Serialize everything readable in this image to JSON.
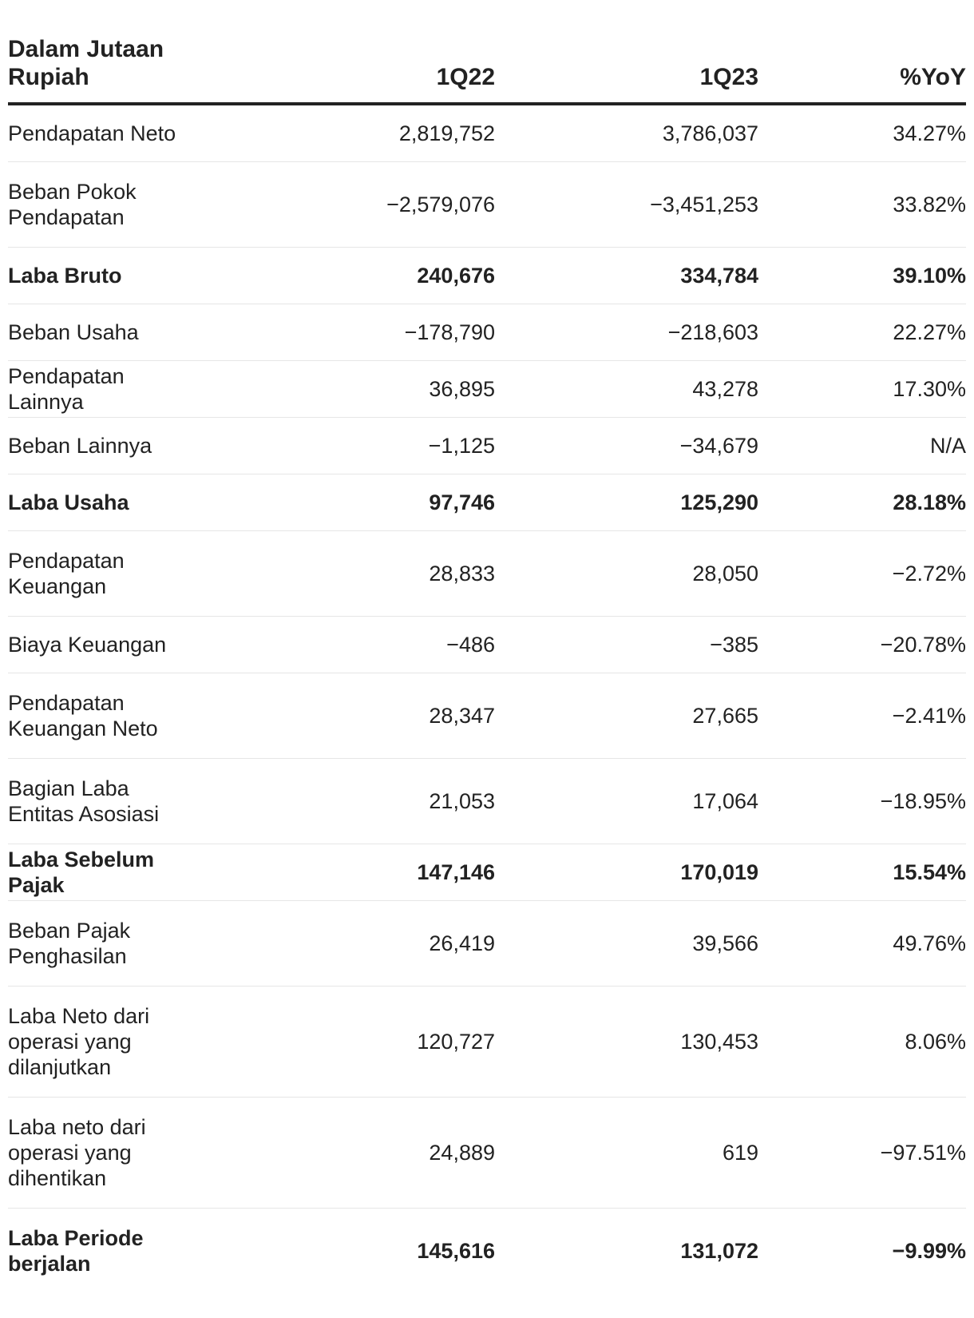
{
  "table": {
    "headers": {
      "label": "Dalam Jutaan Rupiah",
      "q22": "1Q22",
      "q23": "1Q23",
      "yoy": "%YoY"
    },
    "rows": [
      {
        "label": "Pendapatan Neto",
        "q22": "2,819,752",
        "q23": "3,786,037",
        "yoy": "34.27%"
      },
      {
        "label": "Beban Pokok Pendapatan",
        "q22": "−2,579,076",
        "q23": "−3,451,253",
        "yoy": "33.82%"
      },
      {
        "label": "Laba Bruto",
        "q22": "240,676",
        "q23": "334,784",
        "yoy": "39.10%"
      },
      {
        "label": "Beban Usaha",
        "q22": "−178,790",
        "q23": "−218,603",
        "yoy": "22.27%"
      },
      {
        "label": "Pendapatan Lainnya",
        "q22": "36,895",
        "q23": "43,278",
        "yoy": "17.30%"
      },
      {
        "label": "Beban Lainnya",
        "q22": "−1,125",
        "q23": "−34,679",
        "yoy": "N/A"
      },
      {
        "label": "Laba Usaha",
        "q22": "97,746",
        "q23": "125,290",
        "yoy": "28.18%"
      },
      {
        "label": "Pendapatan Keuangan",
        "q22": "28,833",
        "q23": "28,050",
        "yoy": "−2.72%"
      },
      {
        "label": "Biaya Keuangan",
        "q22": "−486",
        "q23": "−385",
        "yoy": "−20.78%"
      },
      {
        "label": "Pendapatan Keuangan Neto",
        "q22": "28,347",
        "q23": "27,665",
        "yoy": "−2.41%"
      },
      {
        "label": "Bagian Laba Entitas Asosiasi",
        "q22": "21,053",
        "q23": "17,064",
        "yoy": "−18.95%"
      },
      {
        "label": "Laba Sebelum Pajak",
        "q22": "147,146",
        "q23": "170,019",
        "yoy": "15.54%"
      },
      {
        "label": "Beban Pajak Penghasilan",
        "q22": "26,419",
        "q23": "39,566",
        "yoy": "49.76%"
      },
      {
        "label": "Laba Neto dari operasi yang dilanjutkan",
        "q22": "120,727",
        "q23": "130,453",
        "yoy": "8.06%"
      },
      {
        "label": "Laba neto dari operasi yang dihentikan",
        "q22": "24,889",
        "q23": "619",
        "yoy": "−97.51%"
      },
      {
        "label": "Laba Periode berjalan",
        "q22": "145,616",
        "q23": "131,072",
        "yoy": "−9.99%"
      }
    ]
  }
}
